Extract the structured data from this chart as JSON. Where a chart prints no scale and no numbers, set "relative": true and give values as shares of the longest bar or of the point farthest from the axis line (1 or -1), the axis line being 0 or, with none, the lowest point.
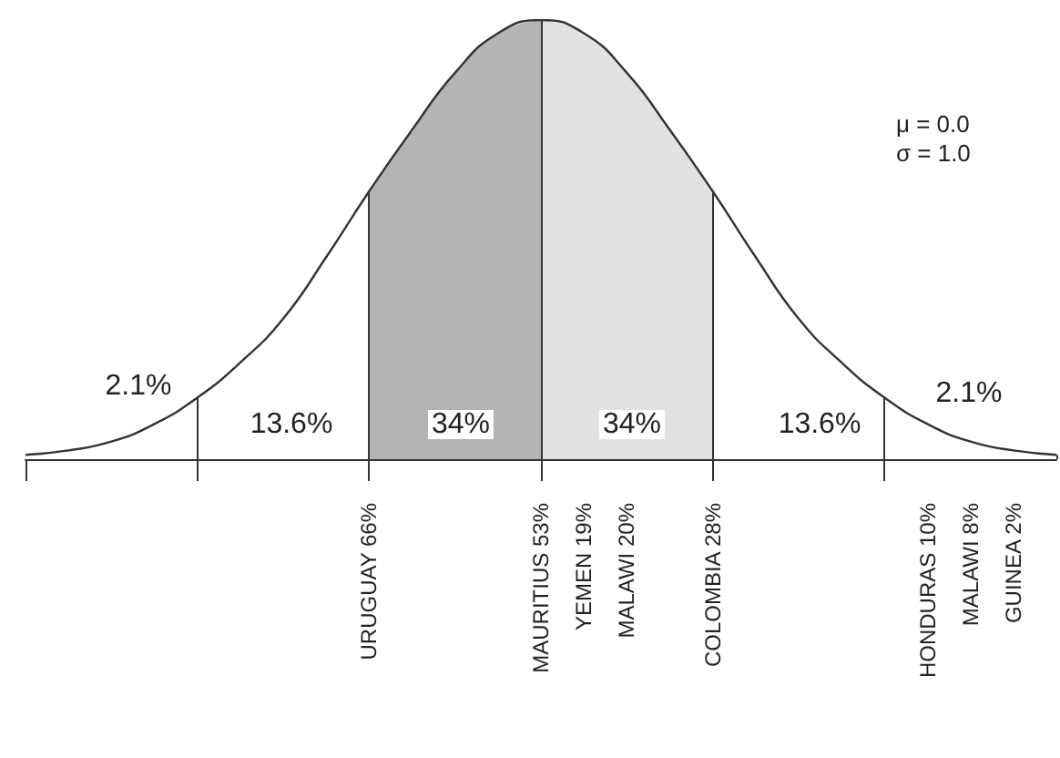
{
  "chart_data": {
    "type": "line",
    "relative": true,
    "categories": [
      null,
      null,
      null,
      null,
      null,
      null,
      null,
      null,
      "URUGUAY 66%",
      null,
      null,
      null,
      "MAURITIUS 53%",
      "YEMEN 19%",
      "MALAWI 20%",
      null,
      "COLOMBIA 28%",
      null,
      null,
      null,
      null,
      "HONDURAS 10%",
      "MALAWI 8%",
      "GUINEA 2%",
      null
    ],
    "series": [
      {
        "color": "#333333",
        "values": [
          0.01,
          0.02,
          0.04,
          0.08,
          0.14,
          0.22,
          0.32,
          0.46,
          0.61,
          0.75,
          0.88,
          0.97,
          1,
          0.97,
          0.88,
          0.75,
          0.61,
          0.46,
          0.32,
          0.22,
          0.14,
          0.08,
          0.04,
          0.02,
          0.01
        ]
      }
    ],
    "bands": [
      {
        "axis": "x",
        "from": "URUGUAY 66%",
        "to": "MAURITIUS 53%",
        "color": "#b4b4b4"
      },
      {
        "axis": "x",
        "from": "MAURITIUS 53%",
        "to": "COLOMBIA 28%",
        "color": "#e2e2e2"
      }
    ],
    "annotations": [
      "μ = 0.0",
      "σ = 1.0",
      "2.1%",
      "13.6%",
      "34%",
      "34%",
      "13.6%",
      "2.1%"
    ],
    "grid": "x",
    "marker": "none",
    "line_style": "solid"
  }
}
